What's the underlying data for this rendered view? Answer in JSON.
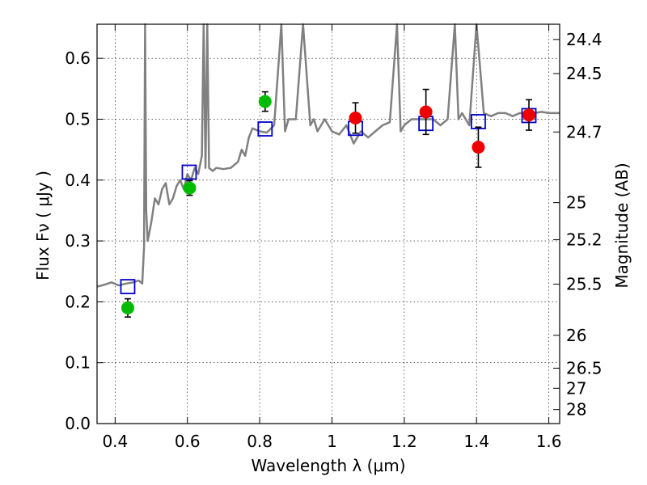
{
  "chart_data": {
    "type": "scatter",
    "title": "",
    "xlabel": "Wavelength  λ (μm)",
    "ylabel": "Flux  Fν  ( μJy )",
    "y2label": "Magnitude (AB)",
    "xlim": [
      0.35,
      1.63
    ],
    "ylim": [
      0.0,
      0.656
    ],
    "grid": true,
    "x_ticks": [
      0.4,
      0.6,
      0.8,
      1.0,
      1.2,
      1.4,
      1.6
    ],
    "x_tick_labels": [
      "0.4",
      "0.6",
      "0.8",
      "1",
      "1.2",
      "1.4",
      "1.6"
    ],
    "y_ticks": [
      0.0,
      0.1,
      0.2,
      0.3,
      0.4,
      0.5,
      0.6
    ],
    "y_tick_labels": [
      "0.0",
      "0.1",
      "0.2",
      "0.3",
      "0.4",
      "0.5",
      "0.6"
    ],
    "y2_tick_labels": [
      "24.4",
      "24.5",
      "24.7",
      "25",
      "25.2",
      "25.5",
      "26",
      "26.5",
      "27",
      "28"
    ],
    "y2_tick_flux_values": [
      0.631,
      0.575,
      0.479,
      0.363,
      0.302,
      0.229,
      0.145,
      0.091,
      0.058,
      0.023
    ],
    "colors": {
      "model": "#808080",
      "green_points": "#00bb00",
      "red_points": "#ee0000",
      "squares": "#0000cc",
      "errorbars": "#000000"
    },
    "series": [
      {
        "marker": "line",
        "x": [
          0.35,
          0.37,
          0.39,
          0.41,
          0.43,
          0.45,
          0.465,
          0.475,
          0.48,
          0.483,
          0.486,
          0.49,
          0.5,
          0.51,
          0.52,
          0.53,
          0.54,
          0.55,
          0.56,
          0.57,
          0.58,
          0.59,
          0.6,
          0.61,
          0.62,
          0.63,
          0.64,
          0.645,
          0.65,
          0.655,
          0.66,
          0.67,
          0.68,
          0.7,
          0.72,
          0.74,
          0.75,
          0.76,
          0.77,
          0.78,
          0.8,
          0.82,
          0.84,
          0.86,
          0.87,
          0.88,
          0.9,
          0.92,
          0.94,
          0.95,
          0.96,
          0.98,
          1.0,
          1.02,
          1.04,
          1.06,
          1.08,
          1.1,
          1.12,
          1.14,
          1.16,
          1.18,
          1.19,
          1.2,
          1.22,
          1.24,
          1.26,
          1.28,
          1.3,
          1.32,
          1.34,
          1.35,
          1.36,
          1.38,
          1.4,
          1.42,
          1.44,
          1.46,
          1.48,
          1.5,
          1.52,
          1.54,
          1.56,
          1.58,
          1.6,
          1.63
        ],
        "y": [
          0.225,
          0.228,
          0.232,
          0.227,
          0.23,
          0.232,
          0.235,
          0.23,
          0.29,
          0.66,
          0.35,
          0.3,
          0.33,
          0.37,
          0.36,
          0.385,
          0.395,
          0.36,
          0.37,
          0.39,
          0.4,
          0.385,
          0.41,
          0.4,
          0.42,
          0.41,
          0.44,
          0.66,
          0.42,
          0.66,
          0.42,
          0.415,
          0.42,
          0.418,
          0.42,
          0.43,
          0.45,
          0.44,
          0.47,
          0.485,
          0.48,
          0.478,
          0.49,
          0.66,
          0.48,
          0.5,
          0.5,
          0.66,
          0.49,
          0.5,
          0.48,
          0.5,
          0.48,
          0.475,
          0.49,
          0.46,
          0.48,
          0.47,
          0.48,
          0.49,
          0.495,
          0.66,
          0.48,
          0.49,
          0.5,
          0.5,
          0.5,
          0.5,
          0.49,
          0.5,
          0.66,
          0.5,
          0.51,
          0.49,
          0.66,
          0.51,
          0.505,
          0.51,
          0.51,
          0.505,
          0.51,
          0.51,
          0.51,
          0.512,
          0.51,
          0.51
        ]
      },
      {
        "marker": "square",
        "x": [
          0.435,
          0.605,
          0.815,
          1.065,
          1.26,
          1.405,
          1.545
        ],
        "y": [
          0.225,
          0.413,
          0.484,
          0.485,
          0.493,
          0.496,
          0.506
        ]
      },
      {
        "marker": "circle",
        "x": [
          0.435,
          0.606,
          0.815
        ],
        "y": [
          0.19,
          0.387,
          0.529
        ],
        "yerr": [
          0.015,
          0.012,
          0.016
        ]
      },
      {
        "marker": "circle",
        "x": [
          1.065,
          1.26,
          1.405,
          1.545
        ],
        "y": [
          0.502,
          0.512,
          0.454,
          0.507
        ],
        "yerr": [
          0.025,
          0.037,
          0.033,
          0.025
        ]
      }
    ]
  }
}
